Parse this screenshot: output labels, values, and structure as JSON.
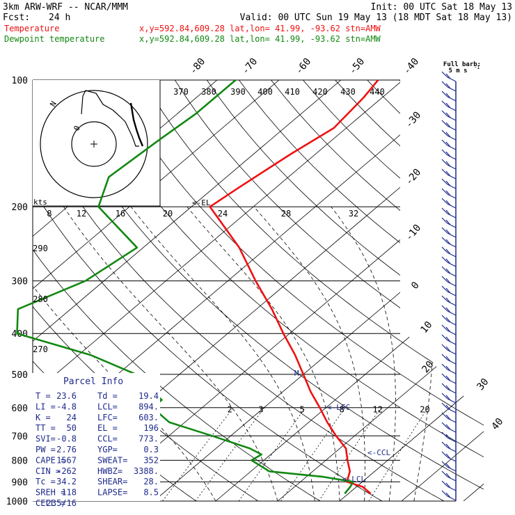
{
  "header": {
    "model": "3km ARW-WRF -- NCAR/MMM",
    "init": "Init: 00 UTC Sat 18 May 13",
    "fcst_label": "Fcst:",
    "fcst_value": "24 h",
    "valid": "Valid: 00 UTC Sun 19 May 13 (18 MDT Sat 18 May 13)",
    "temp_label": "Temperature",
    "temp_info": "x,y=592.84,609.28   lat,lon= 41.99, -93.62  stn=AMW",
    "dew_label": "Dewpoint temperature",
    "dew_info": "x,y=592.84,609.28   lat,lon= 41.99, -93.62  stn=AMW"
  },
  "barb_legend": {
    "line1": "Full barb:",
    "line2": "5 m s",
    "exp": "-1"
  },
  "hodo": {
    "kts_label": "kts",
    "rings": [
      "8",
      "12",
      "16",
      "20",
      "24",
      "28",
      "32"
    ],
    "n_label": "N",
    "zero_label": "0"
  },
  "parcel": {
    "title": "Parcel Info",
    "rows": [
      [
        "T  =",
        "23.6",
        "Td =",
        "19.4"
      ],
      [
        "LI =",
        "-4.8",
        "LCL=",
        "894."
      ],
      [
        "K  =",
        "24",
        "LFC=",
        "603."
      ],
      [
        "TT =",
        "50",
        "EL =",
        "196"
      ],
      [
        "SVI=",
        "-0.8",
        "CCL=",
        "773."
      ],
      [
        "PW =",
        "2.76",
        "YGP=",
        "0.3"
      ],
      [
        "CAPE =",
        "1567",
        "SWEAT=",
        "352"
      ],
      [
        "CIN  =",
        "-262",
        "HWBZ=",
        "3388."
      ],
      [
        "Tc   =",
        "34.2",
        "SHEAR=",
        "28."
      ],
      [
        "SREH =",
        "118",
        "LAPSE=",
        "8.5"
      ],
      [
        "CELL =",
        "235/16",
        "",
        ""
      ]
    ]
  },
  "level_marks": {
    "el": "<-EL",
    "lfc": "<-LFC",
    "ccl": "<-CCL",
    "lcl": "<-LCL",
    "m": "M"
  },
  "colors": {
    "temperature": "#ee1111",
    "dewpoint": "#118811",
    "barb": "#1e2a8c",
    "axis": "#000000"
  },
  "chart_data": {
    "type": "line",
    "title": "",
    "ylabel": "",
    "xlabel": "",
    "y_scale": "log",
    "ylim": [
      1000,
      100
    ],
    "pressure_ticks": [
      100,
      200,
      300,
      400,
      500,
      600,
      700,
      800,
      900,
      1000
    ],
    "temp_ticks": [
      -80,
      -70,
      -60,
      -50,
      -40,
      -30,
      -20,
      -10,
      0,
      10,
      20,
      30,
      40
    ],
    "theta_labels": [
      370,
      380,
      390,
      400,
      410,
      420,
      430,
      440,
      290,
      280,
      270
    ],
    "mixing_ratio_labels": [
      2,
      3,
      5,
      8,
      12,
      20
    ],
    "series": [
      {
        "name": "Temperature",
        "p": [
          960,
          925,
          900,
          850,
          800,
          750,
          700,
          650,
          600,
          550,
          500,
          450,
          400,
          350,
          300,
          250,
          200,
          180,
          150,
          130,
          110,
          100
        ],
        "t": [
          23.6,
          21,
          17.5,
          16,
          13.5,
          11,
          7,
          3,
          -1,
          -5.5,
          -10,
          -15,
          -21,
          -27.5,
          -35.5,
          -44.5,
          -57,
          -56,
          -54,
          -52,
          -53,
          -54
        ]
      },
      {
        "name": "Dewpoint temperature",
        "p": [
          960,
          925,
          900,
          875,
          850,
          800,
          775,
          750,
          700,
          650,
          600,
          575,
          550,
          500,
          450,
          400,
          350,
          300,
          250,
          200,
          170,
          140,
          120,
          100
        ],
        "t": [
          19.4,
          19,
          18.5,
          12.5,
          3,
          -2,
          -1.5,
          -4.5,
          -13,
          -22.5,
          -28,
          -28,
          -31,
          -37,
          -48,
          -64,
          -68.5,
          -63,
          -61,
          -75,
          -79,
          -78,
          -77,
          -77
        ]
      }
    ]
  }
}
